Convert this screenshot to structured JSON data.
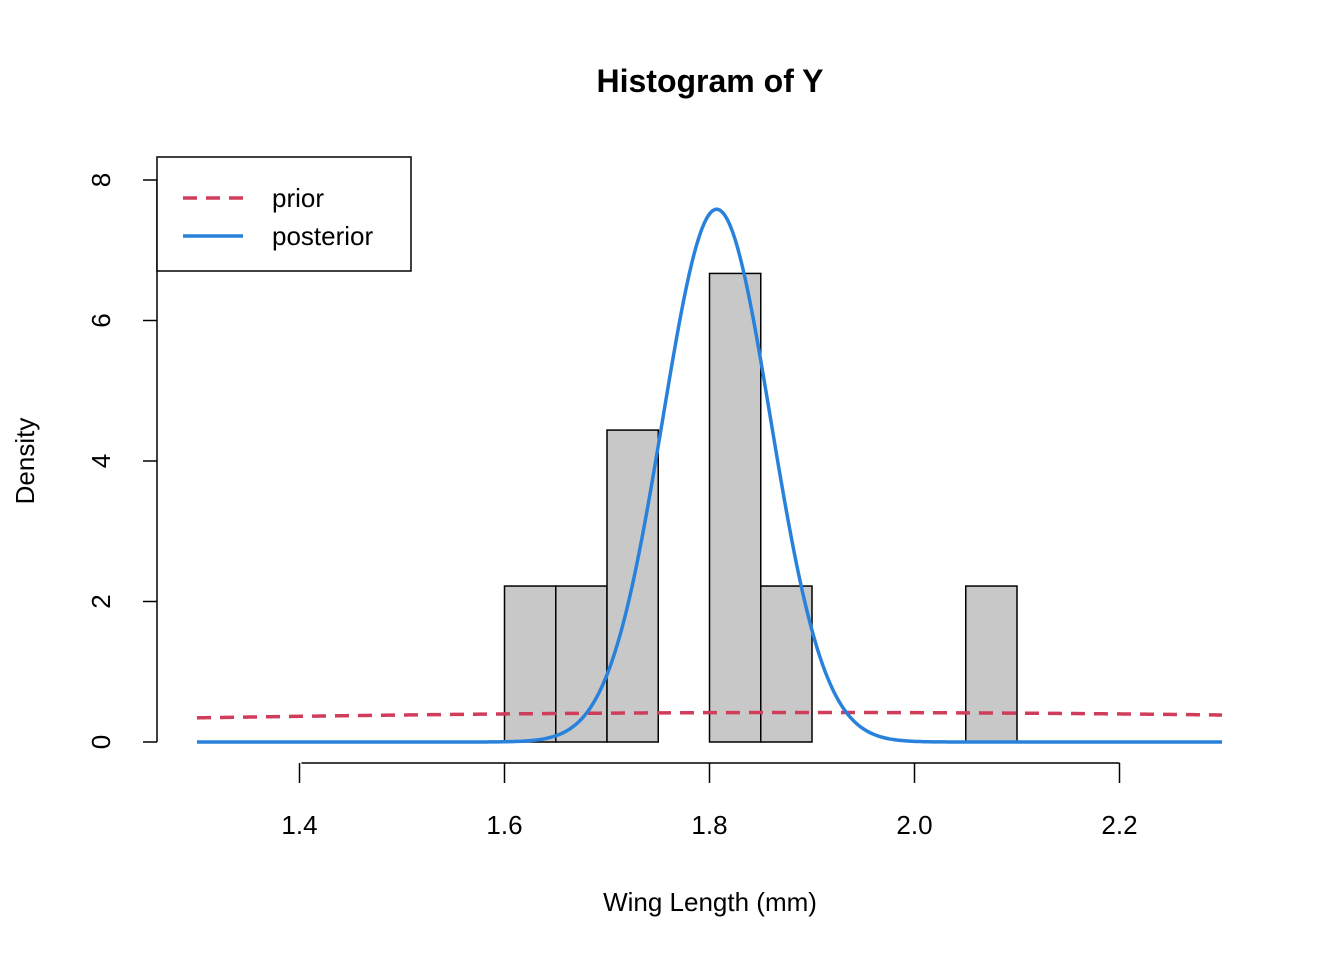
{
  "chart_data": {
    "type": "histogram",
    "title": "Histogram of Y",
    "xlabel": "Wing Length (mm)",
    "ylabel": "Density",
    "xlim": [
      1.3,
      2.3
    ],
    "ylim": [
      0,
      8
    ],
    "x_ticks": [
      1.4,
      1.6,
      1.8,
      2.0,
      2.2
    ],
    "x_tick_labels": [
      "1.4",
      "1.6",
      "1.8",
      "2.0",
      "2.2"
    ],
    "y_ticks": [
      0,
      2,
      4,
      6,
      8
    ],
    "y_tick_labels": [
      "0",
      "2",
      "4",
      "6",
      "8"
    ],
    "bins": [
      {
        "x0": 1.6,
        "x1": 1.65,
        "density": 2.22
      },
      {
        "x0": 1.65,
        "x1": 1.7,
        "density": 2.22
      },
      {
        "x0": 1.7,
        "x1": 1.75,
        "density": 4.44
      },
      {
        "x0": 1.75,
        "x1": 1.8,
        "density": 0
      },
      {
        "x0": 1.8,
        "x1": 1.85,
        "density": 6.67
      },
      {
        "x0": 1.85,
        "x1": 1.9,
        "density": 2.22
      },
      {
        "x0": 1.9,
        "x1": 1.95,
        "density": 0
      },
      {
        "x0": 1.95,
        "x1": 2.0,
        "density": 0
      },
      {
        "x0": 2.0,
        "x1": 2.05,
        "density": 0
      },
      {
        "x0": 2.05,
        "x1": 2.1,
        "density": 2.22
      }
    ],
    "bar_fill": "#c8c8c8",
    "bar_stroke": "#000000",
    "series": [
      {
        "name": "prior",
        "type": "line",
        "style": "dashed",
        "color": "#d03d5b",
        "distribution": "normal",
        "mean": 1.9,
        "sd": 0.95
      },
      {
        "name": "posterior",
        "type": "line",
        "style": "solid",
        "color": "#2882db",
        "distribution": "normal",
        "mean": 1.807,
        "sd": 0.0526
      }
    ],
    "legend_position": "top-left",
    "grid": false
  }
}
